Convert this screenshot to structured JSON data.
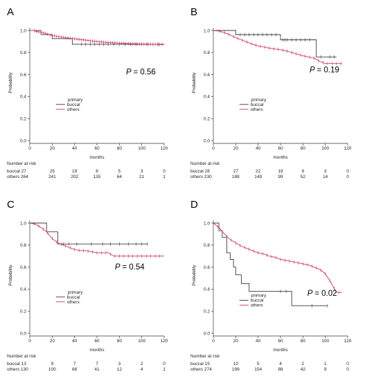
{
  "chart_data": [
    {
      "type": "line",
      "panel": "A",
      "xlabel": "months",
      "ylabel": "Probability",
      "xlim": [
        0,
        120
      ],
      "ylim": [
        0,
        1
      ],
      "xticks": [
        0,
        20,
        40,
        60,
        80,
        100,
        120
      ],
      "yticks": [
        0.0,
        0.2,
        0.4,
        0.6,
        0.8,
        1.0
      ],
      "p_prefix": "P",
      "p_value": "= 0.56",
      "legend_title": "primary",
      "risk_title": "Number at risk",
      "colors": {
        "buccal": "#3a3a3a",
        "others": "#c8375a"
      },
      "series": [
        {
          "name": "buccal",
          "points": [
            [
              0,
              1.0
            ],
            [
              10,
              1.0
            ],
            [
              10,
              0.963
            ],
            [
              20,
              0.963
            ],
            [
              20,
              0.926
            ],
            [
              38,
              0.926
            ],
            [
              38,
              0.875
            ],
            [
              120,
              0.875
            ]
          ],
          "censor": [
            46,
            50,
            54,
            58,
            62,
            66,
            70,
            75,
            80,
            85,
            90,
            95,
            100,
            105,
            110,
            115
          ]
        },
        {
          "name": "others",
          "points": [
            [
              0,
              1.0
            ],
            [
              5,
              1.0
            ],
            [
              5,
              0.992
            ],
            [
              10,
              0.985
            ],
            [
              15,
              0.97
            ],
            [
              20,
              0.955
            ],
            [
              25,
              0.945
            ],
            [
              30,
              0.938
            ],
            [
              35,
              0.93
            ],
            [
              40,
              0.925
            ],
            [
              45,
              0.918
            ],
            [
              50,
              0.912
            ],
            [
              55,
              0.905
            ],
            [
              60,
              0.9
            ],
            [
              65,
              0.895
            ],
            [
              70,
              0.89
            ],
            [
              75,
              0.888
            ],
            [
              80,
              0.885
            ],
            [
              90,
              0.88
            ],
            [
              100,
              0.877
            ],
            [
              110,
              0.875
            ],
            [
              120,
              0.872
            ]
          ],
          "censor": [
            4,
            6,
            8,
            10,
            12,
            14,
            16,
            18,
            20,
            22,
            24,
            26,
            28,
            30,
            32,
            34,
            36,
            38,
            40,
            42,
            44,
            46,
            48,
            50,
            52,
            54,
            56,
            58,
            60,
            62,
            64,
            66,
            68,
            70,
            72,
            74,
            76,
            78,
            80,
            82,
            84,
            86,
            88,
            90,
            92,
            94,
            96,
            98,
            100,
            102,
            104,
            106,
            108,
            110,
            112,
            114,
            116,
            118
          ]
        }
      ],
      "risk_table": {
        "times": [
          0,
          20,
          40,
          60,
          80,
          100,
          120
        ],
        "rows": [
          {
            "name": "buccal",
            "label": "buccal 27",
            "counts": [
              "25",
              "19",
              "8",
              "5",
              "3",
              "0"
            ]
          },
          {
            "name": "others",
            "label": "others 264",
            "counts": [
              "241",
              "202",
              "135",
              "64",
              "21",
              "1"
            ]
          }
        ]
      }
    },
    {
      "type": "line",
      "panel": "B",
      "xlabel": "months",
      "ylabel": "Probability",
      "xlim": [
        0,
        120
      ],
      "ylim": [
        0,
        1
      ],
      "xticks": [
        0,
        20,
        40,
        60,
        80,
        100,
        120
      ],
      "yticks": [
        0.0,
        0.2,
        0.4,
        0.6,
        0.8,
        1.0
      ],
      "p_prefix": "P",
      "p_value": "= 0.19",
      "legend_title": "primary",
      "risk_title": "Number at risk",
      "colors": {
        "buccal": "#3a3a3a",
        "others": "#c8375a"
      },
      "series": [
        {
          "name": "buccal",
          "points": [
            [
              0,
              1.0
            ],
            [
              20,
              1.0
            ],
            [
              20,
              0.962
            ],
            [
              60,
              0.962
            ],
            [
              60,
              0.915
            ],
            [
              92,
              0.915
            ],
            [
              92,
              0.76
            ],
            [
              110,
              0.76
            ]
          ],
          "censor": [
            24,
            28,
            32,
            36,
            40,
            44,
            48,
            52,
            56,
            62,
            64,
            66,
            70,
            74,
            78,
            82,
            86,
            96,
            104,
            108
          ]
        },
        {
          "name": "others",
          "points": [
            [
              0,
              1.0
            ],
            [
              5,
              0.995
            ],
            [
              10,
              0.98
            ],
            [
              15,
              0.96
            ],
            [
              20,
              0.935
            ],
            [
              25,
              0.915
            ],
            [
              30,
              0.895
            ],
            [
              35,
              0.875
            ],
            [
              40,
              0.86
            ],
            [
              45,
              0.85
            ],
            [
              50,
              0.84
            ],
            [
              55,
              0.832
            ],
            [
              60,
              0.825
            ],
            [
              65,
              0.815
            ],
            [
              70,
              0.8
            ],
            [
              75,
              0.785
            ],
            [
              80,
              0.77
            ],
            [
              85,
              0.76
            ],
            [
              90,
              0.75
            ],
            [
              95,
              0.72
            ],
            [
              100,
              0.7
            ],
            [
              110,
              0.7
            ],
            [
              115,
              0.7
            ]
          ],
          "censor": [
            6,
            10,
            14,
            18,
            22,
            26,
            30,
            34,
            38,
            42,
            46,
            50,
            54,
            58,
            62,
            66,
            70,
            74,
            78,
            82,
            86,
            90,
            94,
            98,
            102,
            106,
            110,
            114
          ]
        }
      ],
      "risk_table": {
        "times": [
          0,
          20,
          40,
          60,
          80,
          100,
          120
        ],
        "rows": [
          {
            "name": "buccal",
            "label": "buccal 28",
            "counts": [
              "27",
              "22",
              "19",
              "9",
              "3",
              "0"
            ]
          },
          {
            "name": "others",
            "label": "others 230",
            "counts": [
              "188",
              "149",
              "99",
              "52",
              "14",
              "0"
            ]
          }
        ]
      }
    },
    {
      "type": "line",
      "panel": "C",
      "xlabel": "months",
      "ylabel": "Probability",
      "xlim": [
        0,
        120
      ],
      "ylim": [
        0,
        1
      ],
      "xticks": [
        0,
        20,
        40,
        60,
        80,
        100,
        120
      ],
      "yticks": [
        0.0,
        0.2,
        0.4,
        0.6,
        0.8,
        1.0
      ],
      "p_prefix": "P",
      "p_value": "= 0.54",
      "legend_title": "primary",
      "risk_title": "Number at risk",
      "colors": {
        "buccal": "#3a3a3a",
        "others": "#c8375a"
      },
      "series": [
        {
          "name": "buccal",
          "points": [
            [
              0,
              1.0
            ],
            [
              15,
              1.0
            ],
            [
              15,
              0.92
            ],
            [
              25,
              0.92
            ],
            [
              25,
              0.81
            ],
            [
              105,
              0.81
            ]
          ],
          "censor": [
            30,
            35,
            42,
            55,
            65,
            72,
            80,
            88,
            95,
            100,
            105
          ]
        },
        {
          "name": "others",
          "points": [
            [
              0,
              1.0
            ],
            [
              5,
              0.99
            ],
            [
              10,
              0.96
            ],
            [
              15,
              0.92
            ],
            [
              20,
              0.86
            ],
            [
              25,
              0.82
            ],
            [
              30,
              0.8
            ],
            [
              35,
              0.78
            ],
            [
              40,
              0.76
            ],
            [
              45,
              0.75
            ],
            [
              50,
              0.75
            ],
            [
              55,
              0.74
            ],
            [
              60,
              0.73
            ],
            [
              70,
              0.73
            ],
            [
              75,
              0.7
            ],
            [
              120,
              0.7
            ]
          ],
          "censor": [
            4,
            8,
            12,
            16,
            20,
            24,
            28,
            32,
            36,
            40,
            44,
            48,
            52,
            56,
            60,
            64,
            68,
            72,
            76,
            80,
            84,
            88,
            92,
            96,
            100,
            104,
            108,
            112,
            116
          ]
        }
      ],
      "risk_table": {
        "times": [
          0,
          20,
          40,
          60,
          80,
          100,
          120
        ],
        "rows": [
          {
            "name": "buccal",
            "label": "buccal 13",
            "counts": [
              "9",
              "7",
              "7",
              "3",
              "2",
              "0"
            ]
          },
          {
            "name": "others",
            "label": "others 130",
            "counts": [
              "100",
              "68",
              "41",
              "12",
              "4",
              "1"
            ]
          }
        ]
      }
    },
    {
      "type": "line",
      "panel": "D",
      "xlabel": "months",
      "ylabel": "Probability",
      "xlim": [
        0,
        120
      ],
      "ylim": [
        0,
        1
      ],
      "xticks": [
        0,
        20,
        40,
        60,
        80,
        100,
        120
      ],
      "yticks": [
        0.0,
        0.2,
        0.4,
        0.6,
        0.8,
        1.0
      ],
      "p_prefix": "P",
      "p_value": "= 0.02",
      "legend_title": "primary",
      "risk_title": "Number at risk",
      "colors": {
        "buccal": "#3a3a3a",
        "others": "#c8375a"
      },
      "series": [
        {
          "name": "buccal",
          "points": [
            [
              0,
              1.0
            ],
            [
              5,
              1.0
            ],
            [
              5,
              0.93
            ],
            [
              8,
              0.93
            ],
            [
              8,
              0.87
            ],
            [
              12,
              0.87
            ],
            [
              12,
              0.73
            ],
            [
              15,
              0.73
            ],
            [
              15,
              0.67
            ],
            [
              18,
              0.67
            ],
            [
              18,
              0.6
            ],
            [
              20,
              0.6
            ],
            [
              20,
              0.53
            ],
            [
              25,
              0.53
            ],
            [
              25,
              0.45
            ],
            [
              32,
              0.45
            ],
            [
              32,
              0.38
            ],
            [
              70,
              0.38
            ],
            [
              70,
              0.25
            ],
            [
              102,
              0.25
            ]
          ],
          "censor": [
            60,
            65,
            88,
            102
          ]
        },
        {
          "name": "others",
          "points": [
            [
              0,
              1.0
            ],
            [
              5,
              0.96
            ],
            [
              10,
              0.9
            ],
            [
              15,
              0.85
            ],
            [
              20,
              0.82
            ],
            [
              25,
              0.79
            ],
            [
              30,
              0.77
            ],
            [
              35,
              0.75
            ],
            [
              40,
              0.73
            ],
            [
              45,
              0.72
            ],
            [
              50,
              0.7
            ],
            [
              55,
              0.69
            ],
            [
              60,
              0.67
            ],
            [
              65,
              0.66
            ],
            [
              70,
              0.65
            ],
            [
              75,
              0.64
            ],
            [
              80,
              0.63
            ],
            [
              85,
              0.62
            ],
            [
              90,
              0.6
            ],
            [
              95,
              0.58
            ],
            [
              100,
              0.54
            ],
            [
              105,
              0.46
            ],
            [
              110,
              0.37
            ],
            [
              115,
              0.37
            ]
          ],
          "censor": [
            4,
            8,
            12,
            16,
            20,
            24,
            28,
            32,
            36,
            40,
            44,
            48,
            52,
            56,
            60,
            64,
            68,
            72,
            76,
            80,
            84,
            88,
            92,
            96,
            100,
            104,
            108,
            112
          ]
        }
      ],
      "risk_table": {
        "times": [
          0,
          20,
          40,
          60,
          80,
          100,
          120
        ],
        "rows": [
          {
            "name": "buccal",
            "label": "buccal 15",
            "counts": [
              "10",
              "5",
              "4",
              "2",
              "1",
              "0"
            ]
          },
          {
            "name": "others",
            "label": "others 274",
            "counts": [
              "199",
              "154",
              "88",
              "42",
              "9",
              "0"
            ]
          }
        ]
      }
    }
  ]
}
